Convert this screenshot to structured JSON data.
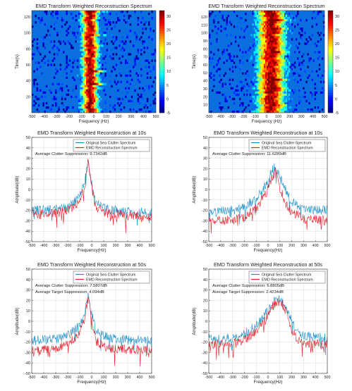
{
  "figure": {
    "colors": {
      "original": "#1b8fc9",
      "emd": "#e0202a",
      "grid": "#d9d9d9",
      "axis": "#333333"
    }
  },
  "chart_data": [
    {
      "id": "heatmap-left",
      "type": "heatmap",
      "title": "EMD Transform Weighted Reconstruction Spectrum",
      "xlabel": "Frequency (Hz)",
      "ylabel": "Time(s)",
      "xlim": [
        -500,
        500
      ],
      "ylim": [
        0,
        128
      ],
      "xticks": [
        -500,
        -400,
        -300,
        -200,
        -100,
        0,
        100,
        200,
        300,
        400,
        500
      ],
      "yticks": [
        20,
        40,
        60,
        80,
        100,
        120
      ],
      "colorbar": {
        "ticks": [
          -5,
          0,
          5,
          10,
          15,
          20,
          25,
          30
        ],
        "range": [
          -5,
          32
        ],
        "colormap": "jet"
      },
      "ridge": {
        "center_hz": -30,
        "width_hz": 60,
        "peak_db": 30
      }
    },
    {
      "id": "heatmap-right",
      "type": "heatmap",
      "title": "EMD Transform Weighted Reconstruction Spectrum",
      "xlabel": "Frequency (Hz)",
      "ylabel": "Time(s)",
      "xlim": [
        -500,
        500
      ],
      "ylim": [
        0,
        128
      ],
      "xticks": [
        -500,
        -400,
        -300,
        -200,
        -100,
        0,
        100,
        200,
        300,
        400,
        500
      ],
      "yticks": [
        10,
        20,
        30,
        40,
        50,
        60,
        70,
        80,
        90,
        100,
        110,
        120
      ],
      "colorbar": {
        "ticks": [
          -5,
          0,
          5,
          10,
          15,
          20,
          25,
          30
        ],
        "range": [
          -5,
          32
        ],
        "colormap": "jet"
      },
      "ridge": {
        "center_hz": 40,
        "width_hz": 110,
        "peak_db": 30
      }
    },
    {
      "id": "spectrum-left-10s",
      "type": "line",
      "title": "EMD Transform Weighted Reconstruction at 10s",
      "xlabel": "Frequency(Hz)",
      "ylabel": "Amplitude(dB)",
      "xlim": [
        -500,
        500
      ],
      "ylim": [
        -50,
        50
      ],
      "xticks": [
        -500,
        -400,
        -300,
        -200,
        -100,
        0,
        100,
        200,
        300,
        400,
        500
      ],
      "yticks": [
        -50,
        -40,
        -30,
        -20,
        -10,
        0,
        10,
        20,
        30,
        40,
        50
      ],
      "grid": true,
      "legend": "top-right",
      "annotations": [
        "Average Clutter Suppression:  9.7342dB"
      ],
      "series": [
        {
          "name": "Original Sea Clutter Spectrum",
          "x": [
            -500,
            -300,
            -200,
            -150,
            -100,
            -60,
            -30,
            0,
            30,
            100,
            200,
            300,
            500
          ],
          "values": [
            -20,
            -19,
            -17,
            -13,
            -6,
            6,
            28,
            5,
            -12,
            -18,
            -20,
            -21,
            -22
          ]
        },
        {
          "name": "EMD Reconstruction Spectrum",
          "x": [
            -500,
            -300,
            -200,
            -150,
            -100,
            -60,
            -30,
            0,
            30,
            100,
            200,
            300,
            500
          ],
          "values": [
            -24,
            -23,
            -20,
            -17,
            -10,
            2,
            27,
            2,
            -16,
            -22,
            -24,
            -25,
            -26
          ]
        }
      ]
    },
    {
      "id": "spectrum-right-10s",
      "type": "line",
      "title": "EMD Transform Weighted Reconstruction at 10s",
      "xlabel": "Frequency(Hz)",
      "ylabel": "Amplitude(dB)",
      "xlim": [
        -500,
        500
      ],
      "ylim": [
        -50,
        50
      ],
      "xticks": [
        -500,
        -400,
        -300,
        -200,
        -100,
        0,
        100,
        200,
        300,
        400,
        500
      ],
      "yticks": [
        -50,
        -40,
        -30,
        -20,
        -10,
        0,
        10,
        20,
        30,
        40,
        50
      ],
      "grid": true,
      "legend": "top-right",
      "annotations": [
        "Average Clutter Suppression:  11.6289dB"
      ],
      "series": [
        {
          "name": "Original Sea Clutter Spectrum",
          "x": [
            -500,
            -300,
            -200,
            -100,
            0,
            30,
            60,
            100,
            150,
            200,
            300,
            500
          ],
          "values": [
            -22,
            -20,
            -17,
            -8,
            7,
            18,
            22,
            12,
            0,
            -12,
            -18,
            -20
          ]
        },
        {
          "name": "EMD Reconstruction Spectrum",
          "x": [
            -500,
            -300,
            -200,
            -100,
            0,
            30,
            60,
            100,
            150,
            200,
            300,
            500
          ],
          "values": [
            -30,
            -29,
            -27,
            -18,
            0,
            10,
            18,
            2,
            -14,
            -22,
            -28,
            -30
          ]
        }
      ]
    },
    {
      "id": "spectrum-left-50s",
      "type": "line",
      "title": "EMD Transform Weighted Reconstruction at 50s",
      "xlabel": "Frequency(Hz)",
      "ylabel": "Amplitude(dB)",
      "xlim": [
        -500,
        500
      ],
      "ylim": [
        -50,
        50
      ],
      "xticks": [
        -500,
        -400,
        -300,
        -200,
        -100,
        0,
        100,
        200,
        300,
        400,
        500
      ],
      "yticks": [
        -50,
        -40,
        -30,
        -20,
        -10,
        0,
        10,
        20,
        30,
        40,
        50
      ],
      "grid": true,
      "legend": "top-right",
      "annotations": [
        "Average Clutter Suppression:  7.5807dB",
        "Average Target Suppression:  4.094dB"
      ],
      "series": [
        {
          "name": "Original Sea Clutter Spectrum",
          "x": [
            -500,
            -300,
            -200,
            -100,
            -60,
            -30,
            0,
            30,
            100,
            200,
            300,
            500
          ],
          "values": [
            -18,
            -17,
            -14,
            -4,
            6,
            25,
            8,
            -8,
            -14,
            -17,
            -18,
            -18
          ]
        },
        {
          "name": "EMD Reconstruction Spectrum",
          "x": [
            -500,
            -300,
            -200,
            -100,
            -60,
            -30,
            0,
            30,
            100,
            200,
            300,
            500
          ],
          "values": [
            -28,
            -26,
            -22,
            -12,
            2,
            22,
            4,
            -18,
            -24,
            -26,
            -27,
            -28
          ]
        }
      ]
    },
    {
      "id": "spectrum-right-50s",
      "type": "line",
      "title": "EMD Transform Weighted Reconstruction at 50s",
      "xlabel": "Frequency(Hz)",
      "ylabel": "Amplitude(dB)",
      "xlim": [
        -500,
        500
      ],
      "ylim": [
        -50,
        50
      ],
      "xticks": [
        -500,
        -400,
        -300,
        -200,
        -100,
        0,
        100,
        200,
        300,
        400,
        500
      ],
      "yticks": [
        -50,
        -40,
        -30,
        -20,
        -10,
        0,
        10,
        20,
        30,
        40,
        50
      ],
      "grid": true,
      "legend": "top-right",
      "annotations": [
        "Average Clutter Suppression:  5.8805dB",
        "Average Target Suppression:  2.4234dB"
      ],
      "series": [
        {
          "name": "Original Sea Clutter Spectrum",
          "x": [
            -500,
            -300,
            -200,
            -100,
            0,
            50,
            100,
            150,
            200,
            250,
            300,
            500
          ],
          "values": [
            -17,
            -16,
            -12,
            -4,
            10,
            20,
            22,
            14,
            0,
            -10,
            -14,
            -16
          ]
        },
        {
          "name": "EMD Reconstruction Spectrum",
          "x": [
            -500,
            -300,
            -200,
            -100,
            0,
            50,
            100,
            150,
            200,
            250,
            300,
            500
          ],
          "values": [
            -22,
            -21,
            -18,
            -10,
            6,
            16,
            20,
            10,
            -8,
            -18,
            -21,
            -22
          ]
        }
      ]
    }
  ]
}
